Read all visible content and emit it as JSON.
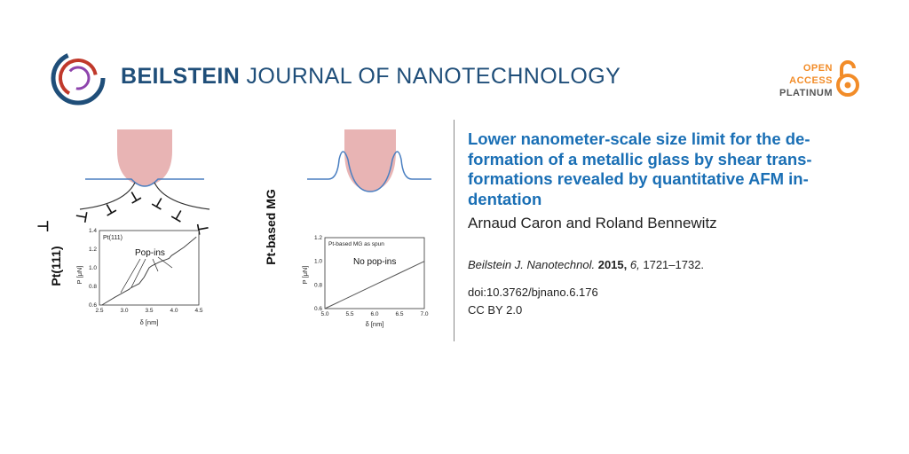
{
  "header": {
    "journal_bold": "BEILSTEIN",
    "journal_rest": "JOURNAL OF NANOTECHNOLOGY",
    "oa_line1": "OPEN",
    "oa_line2": "ACCESS",
    "oa_line3": "PLATINUM"
  },
  "article": {
    "title": "Lower nanometer-scale size limit for the de-formation of a metallic glass by shear trans-formations revealed by quantitative AFM in-dentation",
    "authors": "Arnaud Caron and Roland Bennewitz",
    "journal_abbrev": "Beilstein J. Nanotechnol.",
    "year": "2015,",
    "volume": "6,",
    "pages": "1721–1732.",
    "doi": "doi:10.3762/bjnano.6.176",
    "license": "CC BY 2.0"
  },
  "graphic": {
    "left_label": "Pt(111)",
    "right_label": "Pt-based MG",
    "left_chart_inset": "Pt(111)",
    "left_annotation": "Pop-ins",
    "right_chart_inset": "Pt-based MG as spun",
    "right_annotation": "No pop-ins",
    "ylabel": "P [μN]",
    "xlabel": "δ [nm]"
  },
  "colors": {
    "brand_blue": "#1f4e79",
    "title_blue": "#1a6fb5",
    "oa_orange": "#f28c28",
    "tip_fill": "#e8b4b4",
    "surface_blue": "#4a7fc1"
  },
  "chart_data": [
    {
      "type": "line",
      "title": "Pt(111)",
      "xlabel": "δ [nm]",
      "ylabel": "P [μN]",
      "xlim": [
        2.5,
        4.5
      ],
      "ylim": [
        0.6,
        1.4
      ],
      "xticks": [
        "2.5",
        "3.0",
        "3.5",
        "4.0",
        "4.5"
      ],
      "yticks": [
        "0.6",
        "0.8",
        "1.0",
        "1.2",
        "1.4"
      ],
      "annotation": "Pop-ins",
      "x": [
        2.55,
        2.8,
        3.0,
        3.1,
        3.12,
        3.3,
        3.4,
        3.5,
        3.55,
        3.7,
        3.9,
        3.95,
        4.2,
        4.45
      ],
      "y": [
        0.6,
        0.68,
        0.74,
        0.77,
        0.78,
        0.83,
        0.9,
        1.0,
        1.02,
        1.06,
        1.1,
        1.13,
        1.22,
        1.33
      ]
    },
    {
      "type": "line",
      "title": "Pt-based MG as spun",
      "xlabel": "δ [nm]",
      "ylabel": "P [μN]",
      "xlim": [
        5.0,
        7.0
      ],
      "ylim": [
        0.6,
        1.2
      ],
      "xticks": [
        "5.0",
        "5.5",
        "6.0",
        "6.5",
        "7.0"
      ],
      "yticks": [
        "0.6",
        "0.8",
        "1.0",
        "1.2"
      ],
      "annotation": "No pop-ins",
      "x": [
        5.0,
        5.5,
        6.0,
        6.5,
        7.0
      ],
      "y": [
        0.6,
        0.7,
        0.8,
        0.9,
        1.0
      ]
    }
  ]
}
